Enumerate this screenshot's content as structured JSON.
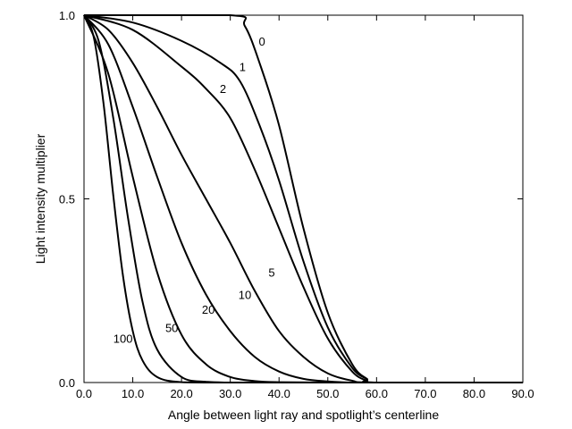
{
  "chart_data": {
    "type": "line",
    "title": "",
    "xlabel": "Angle between light ray and spotlight’s centerline",
    "ylabel": "Light intensity multiplier",
    "xlim": [
      0,
      90
    ],
    "ylim": [
      0,
      1
    ],
    "x_ticks": [
      "0.0",
      "10.0",
      "20.0",
      "30.0",
      "40.0",
      "50.0",
      "60.0",
      "70.0",
      "80.0",
      "90.0"
    ],
    "y_ticks": [
      "0.0",
      "0.5",
      "1.0"
    ],
    "grid": false,
    "legend": "none",
    "line_color": "#000000",
    "series": [
      {
        "name": "0",
        "x": [
          0,
          30,
          33,
          36,
          40,
          45,
          50,
          55,
          58,
          60
        ],
        "y": [
          1.0,
          1.0,
          0.97,
          0.87,
          0.7,
          0.42,
          0.19,
          0.05,
          0.01,
          0.0
        ],
        "label_at": [
          36.5,
          0.93
        ]
      },
      {
        "name": "1",
        "x": [
          0,
          10,
          20,
          28,
          32,
          36,
          40,
          45,
          50,
          55,
          58,
          60
        ],
        "y": [
          1.0,
          0.98,
          0.93,
          0.87,
          0.82,
          0.7,
          0.55,
          0.33,
          0.15,
          0.04,
          0.01,
          0.0
        ],
        "label_at": [
          32.5,
          0.86
        ]
      },
      {
        "name": "2",
        "x": [
          0,
          10,
          20,
          25,
          30,
          35,
          40,
          45,
          50,
          55,
          58,
          60
        ],
        "y": [
          1.0,
          0.96,
          0.86,
          0.8,
          0.72,
          0.58,
          0.42,
          0.26,
          0.12,
          0.03,
          0.005,
          0.0
        ],
        "label_at": [
          28.5,
          0.8
        ]
      },
      {
        "name": "5",
        "x": [
          0,
          5,
          10,
          15,
          20,
          25,
          30,
          35,
          40,
          45,
          50,
          55,
          60
        ],
        "y": [
          1.0,
          0.96,
          0.87,
          0.75,
          0.62,
          0.5,
          0.38,
          0.25,
          0.14,
          0.07,
          0.025,
          0.005,
          0.0
        ],
        "label_at": [
          38.5,
          0.3
        ]
      },
      {
        "name": "10",
        "x": [
          0,
          5,
          10,
          15,
          20,
          25,
          30,
          35,
          40,
          45,
          50,
          55,
          60
        ],
        "y": [
          1.0,
          0.92,
          0.75,
          0.56,
          0.38,
          0.24,
          0.14,
          0.07,
          0.03,
          0.01,
          0.003,
          0.0,
          0.0
        ],
        "label_at": [
          33,
          0.24
        ]
      },
      {
        "name": "20",
        "x": [
          0,
          5,
          10,
          15,
          20,
          25,
          30,
          35,
          40,
          50,
          60
        ],
        "y": [
          1.0,
          0.84,
          0.56,
          0.3,
          0.13,
          0.05,
          0.015,
          0.004,
          0.001,
          0.0,
          0.0
        ],
        "label_at": [
          25.5,
          0.2
        ]
      },
      {
        "name": "50",
        "x": [
          0,
          3,
          6,
          9,
          12,
          15,
          20,
          25,
          30,
          40,
          60
        ],
        "y": [
          1.0,
          0.93,
          0.72,
          0.45,
          0.22,
          0.09,
          0.015,
          0.002,
          0.0,
          0.0,
          0.0
        ],
        "label_at": [
          18,
          0.15
        ]
      },
      {
        "name": "100",
        "x": [
          0,
          2,
          4,
          6,
          8,
          10,
          12,
          15,
          20,
          30,
          60
        ],
        "y": [
          1.0,
          0.94,
          0.76,
          0.51,
          0.29,
          0.14,
          0.06,
          0.015,
          0.001,
          0.0,
          0.0
        ],
        "label_at": [
          8,
          0.12
        ]
      }
    ]
  }
}
